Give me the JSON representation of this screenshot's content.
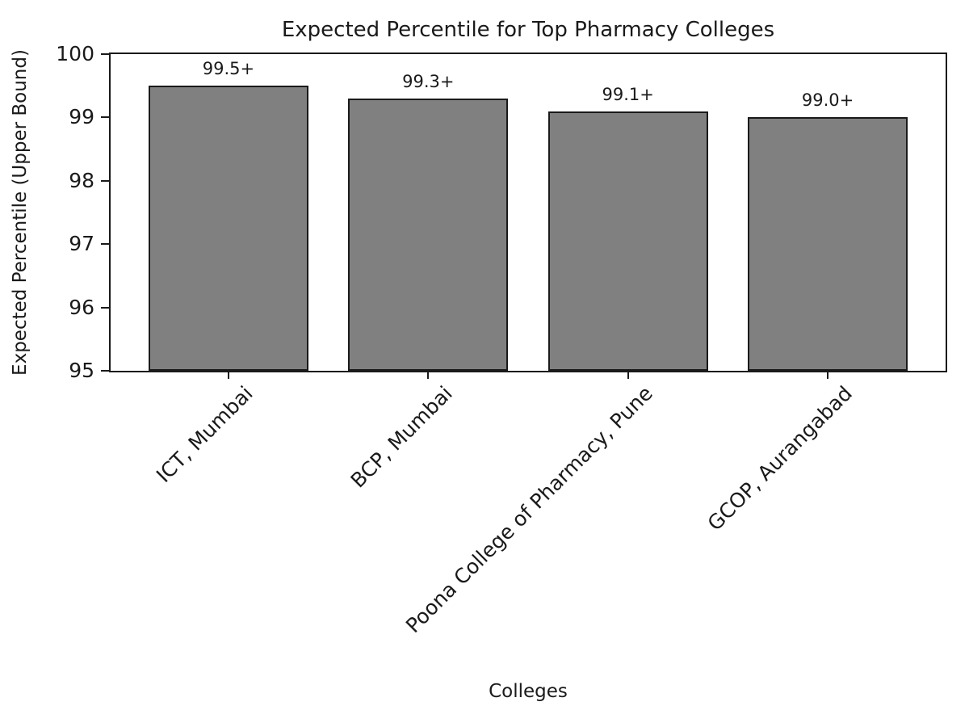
{
  "chart_data": {
    "type": "bar",
    "title": "Expected Percentile for Top Pharmacy Colleges",
    "xlabel": "Colleges",
    "ylabel": "Expected Percentile (Upper Bound)",
    "categories": [
      "ICT, Mumbai",
      "BCP, Mumbai",
      "Poona College of Pharmacy, Pune",
      "GCOP, Aurangabad"
    ],
    "values": [
      99.5,
      99.3,
      99.1,
      99.0
    ],
    "bar_labels": [
      "99.5+",
      "99.3+",
      "99.1+",
      "99.0+"
    ],
    "ylim": [
      95,
      100
    ],
    "yticks": [
      95,
      96,
      97,
      98,
      99,
      100
    ],
    "xtick_rotation_deg": 45,
    "grid": false,
    "legend": false,
    "bar_color": "#808080",
    "bar_edge_color": "#1a1a1a",
    "axis_color": "#1a1a1a",
    "text_color": "#1a1a1a"
  }
}
